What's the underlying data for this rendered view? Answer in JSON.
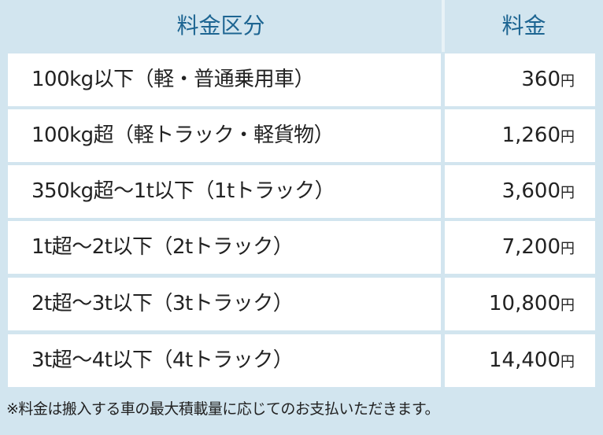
{
  "table": {
    "header": [
      "料金区分",
      "料金"
    ],
    "rows": [
      {
        "item": "100kg以下（軽・普通乗用車）",
        "price": "360",
        "unit": "円"
      },
      {
        "item": "100kg超（軽トラック・軽貨物）",
        "price": "1,260",
        "unit": "円"
      },
      {
        "item": "350kg超〜1t以下（1tトラック）",
        "price": "3,600",
        "unit": "円"
      },
      {
        "item": "1t超〜2t以下（2tトラック）",
        "price": "7,200",
        "unit": "円"
      },
      {
        "item": "2t超〜3t以下（3tトラック）",
        "price": "10,800",
        "unit": "円"
      },
      {
        "item": "3t超〜4t以下（4tトラック）",
        "price": "14,400",
        "unit": "円"
      }
    ],
    "note": "※料金は搬入する車の最大積載量に応じてのお支払いただきます。"
  }
}
